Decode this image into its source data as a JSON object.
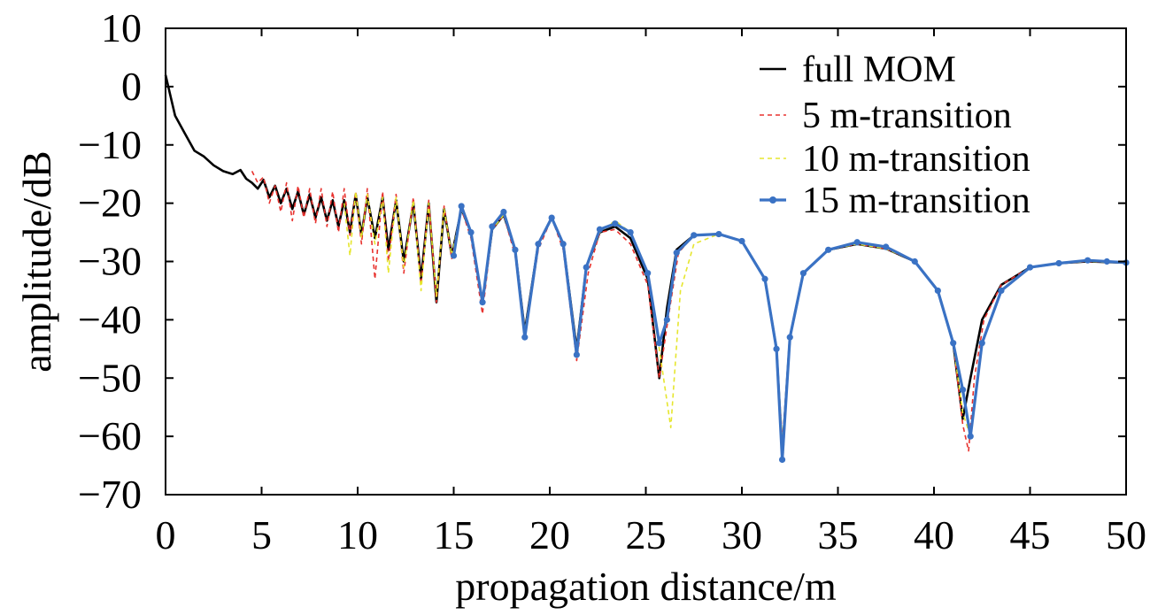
{
  "chart_data": {
    "type": "line",
    "xlabel": "propagation distance/m",
    "ylabel": "amplitude/dB",
    "xlim": [
      0,
      50
    ],
    "ylim": [
      -70,
      10
    ],
    "xticks": [
      "0",
      "5",
      "10",
      "15",
      "20",
      "25",
      "30",
      "35",
      "40",
      "45",
      "50"
    ],
    "yticks": [
      "10",
      "0",
      "−10",
      "−20",
      "−30",
      "−40",
      "−50",
      "−60",
      "−70"
    ],
    "grid": false,
    "legend_position": "top-right",
    "series": [
      {
        "name": "full MOM",
        "color": "#000000",
        "style": "solid",
        "x": [
          0,
          0.5,
          1,
          1.5,
          2,
          2.5,
          3,
          3.5,
          3.9,
          4.2,
          4.5,
          4.8,
          5.1,
          5.4,
          5.7,
          6.0,
          6.3,
          6.6,
          6.9,
          7.2,
          7.5,
          7.8,
          8.1,
          8.4,
          8.7,
          9.0,
          9.3,
          9.6,
          9.9,
          10.2,
          10.5,
          10.9,
          11.3,
          11.6,
          12.0,
          12.4,
          12.9,
          13.3,
          13.7,
          14.1,
          14.5,
          14.9,
          15.4,
          15.9,
          16.5,
          17.0,
          17.6,
          18.2,
          18.7,
          19.4,
          20.1,
          20.7,
          21.4,
          21.9,
          22.6,
          23.4,
          24.2,
          25.1,
          25.7,
          26.1,
          26.6,
          27.5,
          28.8,
          30.0,
          31.2,
          31.8,
          32.1,
          32.5,
          33.2,
          34.5,
          36.0,
          37.5,
          39.0,
          40.2,
          41.0,
          41.5,
          41.9,
          42.5,
          43.5,
          45.0,
          46.5,
          48.0,
          49.0,
          50.0
        ],
        "y": [
          2,
          -5,
          -8,
          -11,
          -12,
          -13.5,
          -14.5,
          -15,
          -14.3,
          -15.8,
          -16.5,
          -17.5,
          -16.0,
          -19.0,
          -17.0,
          -20.0,
          -17.5,
          -21.0,
          -18.0,
          -22.0,
          -18.5,
          -22.5,
          -19.0,
          -23.0,
          -19.5,
          -24.0,
          -19.5,
          -25.0,
          -18.5,
          -25.5,
          -19.0,
          -26.0,
          -19.0,
          -28.0,
          -19.5,
          -30.0,
          -20.0,
          -33.0,
          -20.0,
          -37.0,
          -21.0,
          -29.0,
          -21.0,
          -25.0,
          -37.0,
          -24.5,
          -22.0,
          -28.0,
          -42.0,
          -27.0,
          -22.5,
          -27.0,
          -45.0,
          -31.0,
          -25.0,
          -24.0,
          -26.0,
          -33.0,
          -50.0,
          -38.0,
          -28.0,
          -25.5,
          -25.3,
          -26.5,
          -33.0,
          -45.0,
          -63.0,
          -43.0,
          -32.0,
          -28.0,
          -27.0,
          -27.8,
          -30.0,
          -35.0,
          -44.0,
          -57.0,
          -50.0,
          -40.0,
          -34.0,
          -31.0,
          -30.3,
          -30.0,
          -30.1,
          -30.2
        ]
      },
      {
        "name": "5 m-transition",
        "color": "#e8322e",
        "style": "dashed",
        "x": [
          4.5,
          4.8,
          5.1,
          5.4,
          5.7,
          6.0,
          6.3,
          6.6,
          6.9,
          7.2,
          7.5,
          7.8,
          8.1,
          8.4,
          8.7,
          9.0,
          9.3,
          9.6,
          9.9,
          10.2,
          10.5,
          10.9,
          11.3,
          11.6,
          12.0,
          12.4,
          12.9,
          13.3,
          13.7,
          14.1,
          14.5,
          14.9,
          15.4,
          15.9,
          16.5,
          17.0,
          17.6,
          18.2,
          18.7,
          19.4,
          20.1,
          20.7,
          21.4,
          22.0,
          22.6,
          23.4,
          24.2,
          25.1,
          25.7,
          26.2,
          26.7,
          27.5,
          28.8,
          30.0,
          31.2,
          31.8,
          32.15,
          32.5,
          33.2,
          34.5,
          36.0,
          37.5,
          39.0,
          40.2,
          41.0,
          41.5,
          41.8,
          42.1,
          42.6,
          43.5,
          45.0,
          46.5,
          48.0,
          49.0,
          50.0
        ],
        "y": [
          -14.5,
          -16.5,
          -15.5,
          -20.0,
          -17.0,
          -21.5,
          -16.5,
          -23.0,
          -17.0,
          -22.5,
          -17.5,
          -23.5,
          -17.5,
          -24.0,
          -18.0,
          -25.0,
          -17.5,
          -25.5,
          -18.0,
          -27.0,
          -17.5,
          -33.0,
          -18.0,
          -30.0,
          -18.5,
          -32.0,
          -19.0,
          -34.0,
          -19.5,
          -37.0,
          -20.5,
          -29.5,
          -21.0,
          -26.0,
          -39.0,
          -24.5,
          -22.0,
          -29.0,
          -43.0,
          -28.0,
          -22.5,
          -28.0,
          -47.0,
          -32.0,
          -25.0,
          -24.5,
          -27.0,
          -34.0,
          -50.0,
          -39.0,
          -28.5,
          -25.5,
          -25.3,
          -26.5,
          -33.0,
          -45.0,
          -63.0,
          -43.0,
          -32.0,
          -28.0,
          -27.0,
          -27.8,
          -30.0,
          -35.0,
          -44.0,
          -58.0,
          -62.5,
          -50.0,
          -40.0,
          -34.0,
          -31.0,
          -30.3,
          -30.0,
          -30.1,
          -30.2
        ]
      },
      {
        "name": "10 m-transition",
        "color": "#e6e62e",
        "style": "dashed",
        "x": [
          9.3,
          9.6,
          9.9,
          10.2,
          10.5,
          10.9,
          11.3,
          11.6,
          12.0,
          12.4,
          12.9,
          13.3,
          13.7,
          14.1,
          14.5,
          14.9,
          15.4,
          15.9,
          16.5,
          17.0,
          17.6,
          18.2,
          18.7,
          19.4,
          20.1,
          20.7,
          21.4,
          21.9,
          22.6,
          23.4,
          24.2,
          25.1,
          25.7,
          26.3,
          26.8,
          27.5,
          28.8,
          30.0,
          31.2,
          31.8,
          32.15,
          32.5,
          33.2,
          34.5,
          36.0,
          37.5,
          39.0,
          40.2,
          41.0,
          41.5,
          41.9,
          42.5,
          43.5,
          45.0,
          46.5,
          48.0,
          49.0,
          50.0
        ],
        "y": [
          -20.0,
          -29.0,
          -18.0,
          -26.0,
          -18.5,
          -27.0,
          -19.0,
          -32.0,
          -19.0,
          -31.0,
          -19.5,
          -35.0,
          -20.0,
          -36.0,
          -21.0,
          -29.0,
          -21.0,
          -25.0,
          -37.0,
          -24.5,
          -22.0,
          -28.0,
          -42.0,
          -27.0,
          -22.5,
          -27.0,
          -45.0,
          -31.0,
          -25.0,
          -23.0,
          -25.0,
          -32.0,
          -45.0,
          -58.5,
          -35.0,
          -27.0,
          -25.3,
          -26.5,
          -33.0,
          -45.0,
          -63.0,
          -43.0,
          -32.0,
          -28.0,
          -27.0,
          -27.8,
          -30.0,
          -35.0,
          -44.0,
          -56.0,
          -60.0,
          -44.0,
          -35.0,
          -31.0,
          -30.3,
          -30.0,
          -30.1,
          -30.2
        ]
      },
      {
        "name": "15 m-transition",
        "color": "#3a72c4",
        "style": "solid-markers",
        "x": [
          15.0,
          15.4,
          15.9,
          16.5,
          17.0,
          17.6,
          18.2,
          18.7,
          19.4,
          20.1,
          20.7,
          21.4,
          21.9,
          22.6,
          23.4,
          24.2,
          25.1,
          25.7,
          26.1,
          26.6,
          27.5,
          28.8,
          30.0,
          31.2,
          31.8,
          32.1,
          32.5,
          33.2,
          34.5,
          36.0,
          37.5,
          39.0,
          40.2,
          41.0,
          41.5,
          41.9,
          42.5,
          43.5,
          45.0,
          46.5,
          48.0,
          49.0,
          50.0
        ],
        "y": [
          -29.0,
          -20.5,
          -25.0,
          -37.0,
          -24.0,
          -21.5,
          -28.0,
          -43.0,
          -27.0,
          -22.5,
          -27.0,
          -46.0,
          -31.0,
          -24.5,
          -23.5,
          -25.0,
          -32.0,
          -44.0,
          -40.0,
          -28.5,
          -25.5,
          -25.3,
          -26.5,
          -33.0,
          -45.0,
          -64.0,
          -43.0,
          -32.0,
          -28.0,
          -26.7,
          -27.5,
          -30.0,
          -35.0,
          -44.0,
          -52.0,
          -60.0,
          -44.0,
          -35.0,
          -31.0,
          -30.3,
          -29.8,
          -30.0,
          -30.2
        ]
      }
    ]
  }
}
